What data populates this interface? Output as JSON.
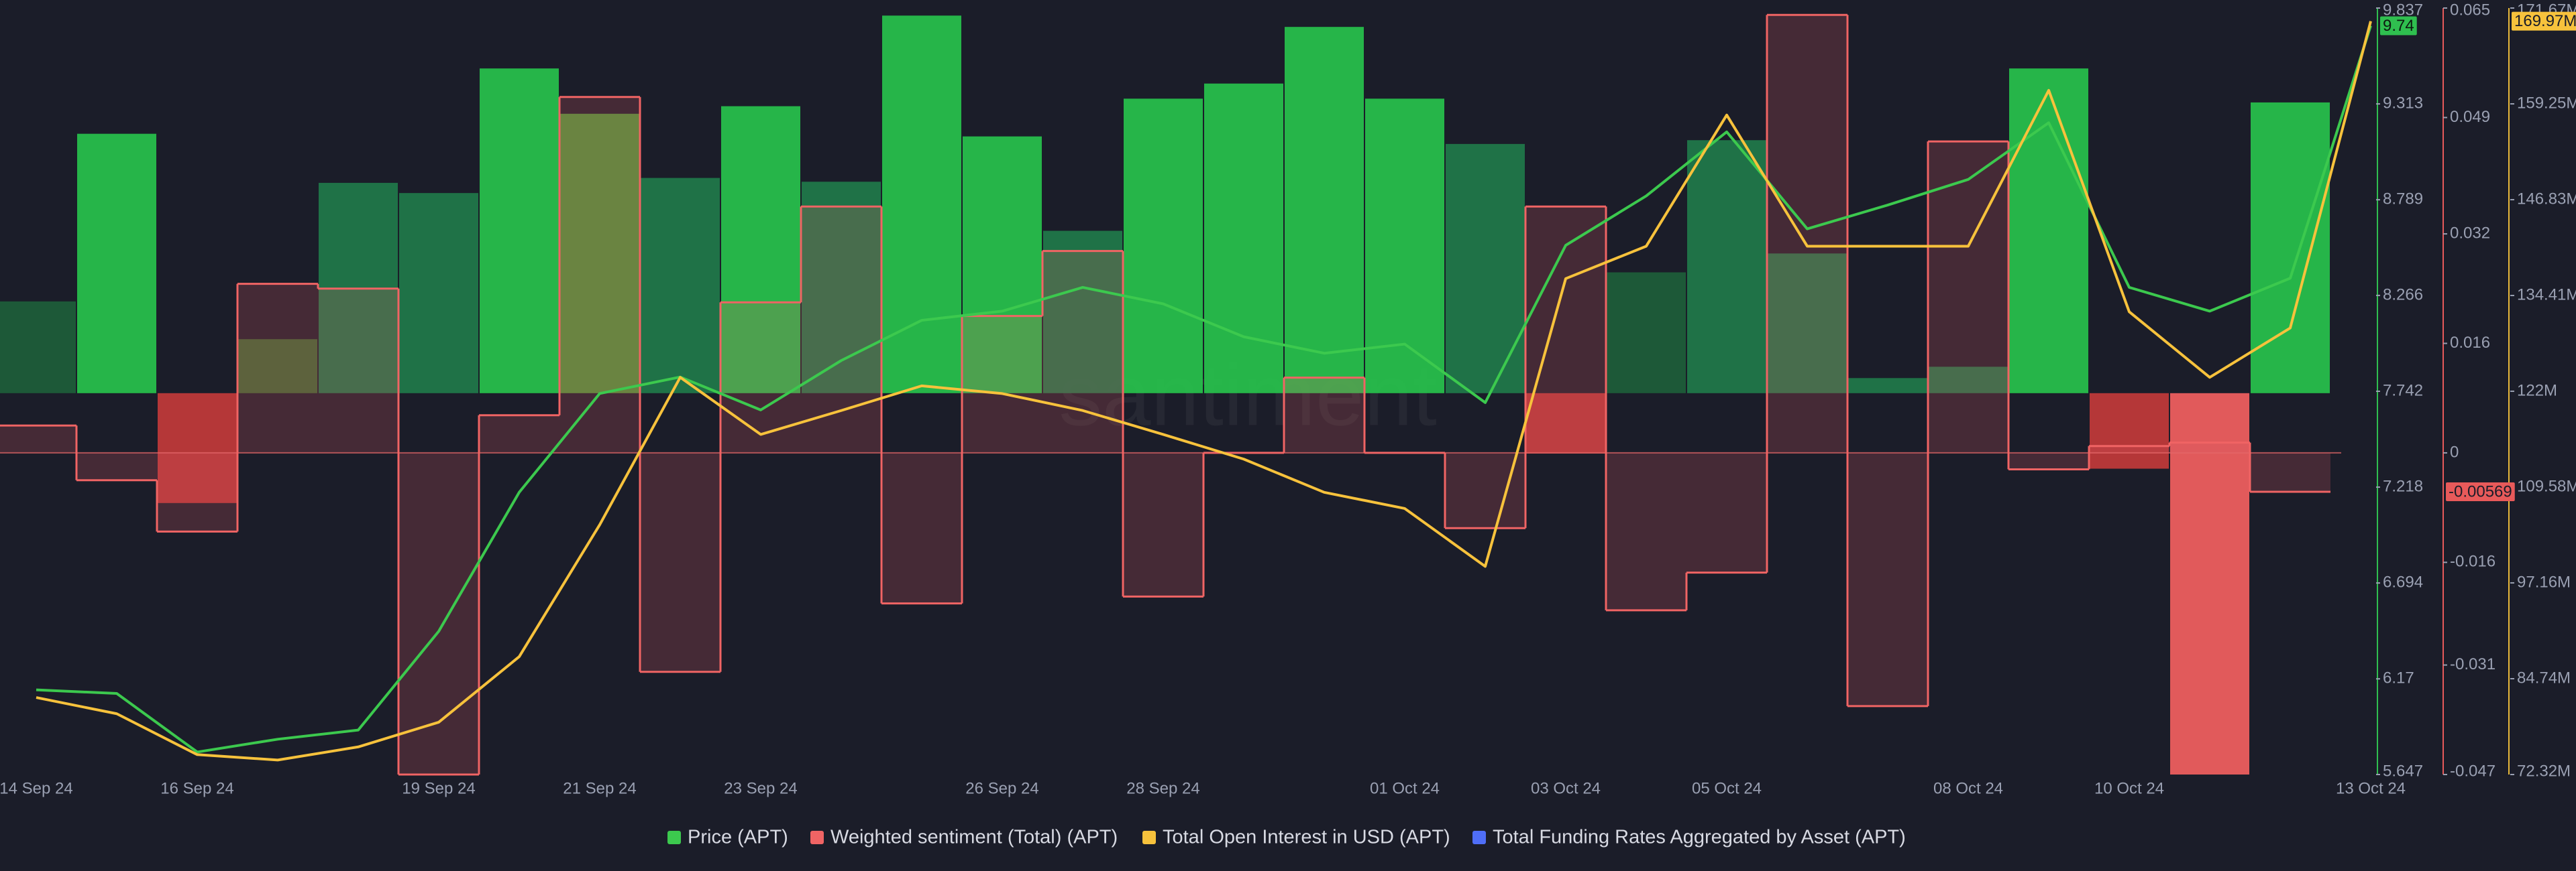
{
  "chart_data": {
    "type": "multi-axis-line-bar",
    "watermark": "santiment",
    "categories": [
      "14 Sep 24",
      null,
      "16 Sep 24",
      null,
      null,
      "19 Sep 24",
      null,
      "21 Sep 24",
      null,
      "23 Sep 24",
      null,
      null,
      "26 Sep 24",
      null,
      "28 Sep 24",
      null,
      null,
      "01 Oct 24",
      null,
      "03 Oct 24",
      null,
      "05 Oct 24",
      null,
      null,
      "08 Oct 24",
      null,
      "10 Oct 24",
      null,
      null,
      "13 Oct 24"
    ],
    "ylim": [
      5.647,
      9.837
    ],
    "yticks": [
      5.647,
      6.17,
      6.694,
      7.218,
      7.742,
      8.266,
      8.789,
      9.313,
      9.837
    ],
    "y2lim": [
      -0.047,
      0.065
    ],
    "y2ticks": [
      -0.047,
      -0.031,
      -0.016,
      0,
      0.016,
      0.032,
      0.049,
      0.065
    ],
    "y3lim": [
      72.32,
      171.67
    ],
    "y3ticks": [
      {
        "value": 72.32,
        "label": "72.32M"
      },
      {
        "value": 84.74,
        "label": "84.74M"
      },
      {
        "value": 97.16,
        "label": "97.16M"
      },
      {
        "value": 109.58,
        "label": "109.58M"
      },
      {
        "value": 122,
        "label": "122M"
      },
      {
        "value": 134.41,
        "label": "134.41M"
      },
      {
        "value": 146.83,
        "label": "146.83M"
      },
      {
        "value": 159.25,
        "label": "159.25M"
      },
      {
        "value": 171.67,
        "label": "171.67M"
      }
    ],
    "y4lim": [
      -0.0101,
      0.0102
    ],
    "series": [
      {
        "name": "Price (APT)",
        "type": "line",
        "axis": "y",
        "color": "#3cc94e",
        "values": [
          6.11,
          6.09,
          5.77,
          5.84,
          5.89,
          6.43,
          7.19,
          7.73,
          7.82,
          7.64,
          7.91,
          8.13,
          8.18,
          8.31,
          8.22,
          8.04,
          7.95,
          8.0,
          7.68,
          8.54,
          8.81,
          9.16,
          8.63,
          8.76,
          8.9,
          9.21,
          8.31,
          8.18,
          8.36,
          9.74
        ]
      },
      {
        "name": "Weighted sentiment (Total) (APT)",
        "type": "step",
        "axis": "y2",
        "color": "#f06464",
        "values": [
          0.004,
          -0.004,
          -0.0115,
          0.0247,
          0.024,
          -0.047,
          0.0055,
          0.052,
          -0.032,
          0.022,
          0.036,
          -0.022,
          0.02,
          0.0295,
          -0.021,
          0.0,
          0.011,
          0.0,
          -0.011,
          0.036,
          -0.023,
          -0.0175,
          0.064,
          -0.037,
          0.0455,
          -0.0024,
          0.001,
          0.0015,
          -0.00569,
          null
        ]
      },
      {
        "name": "Total Open Interest in USD (APT)",
        "type": "line",
        "axis": "y3",
        "color": "#f7c23c",
        "values": [
          82.3,
          80.2,
          74.9,
          74.2,
          75.9,
          79.1,
          87.6,
          104.7,
          123.8,
          116.4,
          119.5,
          122.7,
          121.7,
          119.5,
          116.4,
          113.2,
          108.9,
          106.8,
          99.3,
          136.6,
          140.8,
          157.8,
          140.8,
          140.8,
          140.8,
          161.0,
          132.3,
          123.8,
          130.2,
          169.97
        ],
        "value_labels": [
          null,
          null,
          null,
          null,
          null,
          null,
          null,
          null,
          null,
          null,
          null,
          null,
          null,
          null,
          null,
          null,
          null,
          null,
          null,
          null,
          null,
          null,
          null,
          null,
          null,
          null,
          null,
          null,
          null,
          "169.97M"
        ]
      },
      {
        "name": "Total Funding Rates Aggregated by Asset (APT)",
        "type": "bar",
        "axis": "y4",
        "color": "#4f6ef7",
        "values": [
          0.00243,
          0.00687,
          -0.00291,
          0.00143,
          0.00557,
          0.0053,
          0.0086,
          0.0074,
          0.0057,
          0.0076,
          0.0056,
          0.01,
          0.0068,
          0.0043,
          0.0078,
          0.0082,
          0.0097,
          0.0078,
          0.0066,
          -0.0016,
          0.0032,
          0.0067,
          0.0037,
          0.0004,
          0.0007,
          0.0086,
          -0.002,
          -0.0101,
          0.0077,
          null
        ],
        "bar_colors": [
          "#1d5e3a",
          "#27c24c",
          "#c23a3a",
          "#3d6a34",
          "#1f7a4a",
          "#1f7a4a",
          "#27c24c",
          "#4f9a3a",
          "#1f7a4a",
          "#27c24c",
          "#1f7a4a",
          "#27c24c",
          "#27c24c",
          "#1f7a4a",
          "#27c24c",
          "#27c24c",
          "#27c24c",
          "#27c24c",
          "#1f7a4a",
          "#c23a3a",
          "#1d5e3a",
          "#1f7a4a",
          "#1f7a4a",
          "#1f7a4a",
          "#1f7a4a",
          "#27c24c",
          "#c23a3a",
          "#f25f5f",
          "#27c24c",
          "#27c24c"
        ]
      }
    ]
  }
}
